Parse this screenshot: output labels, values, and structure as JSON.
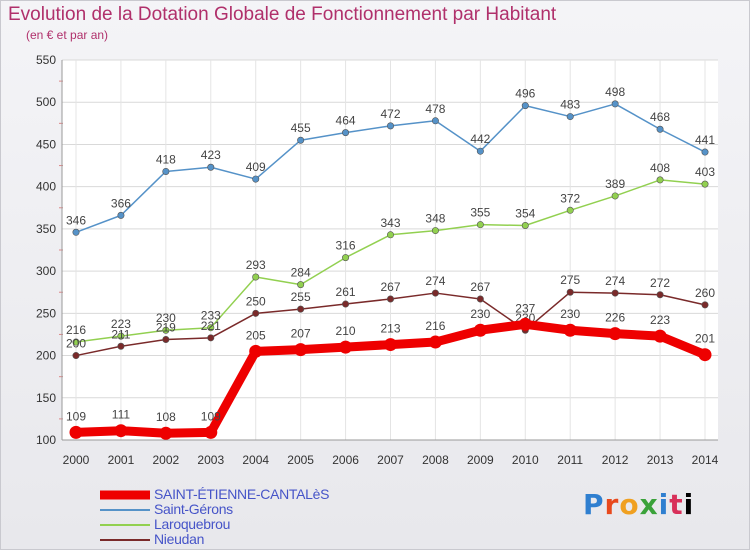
{
  "title": "Evolution de la Dotation Globale de Fonctionnement par Habitant",
  "subtitle": "(en € et par an)",
  "logo_text": "Proxiti",
  "chart_data": {
    "type": "line",
    "title": "Evolution de la Dotation Globale de Fonctionnement par Habitant",
    "subtitle": "(en € et par an)",
    "x": [
      "2000",
      "2001",
      "2002",
      "2003",
      "2004",
      "2005",
      "2006",
      "2007",
      "2008",
      "2009",
      "2010",
      "2011",
      "2012",
      "2013",
      "2014"
    ],
    "ylim": [
      100,
      550
    ],
    "yticks": [
      100,
      150,
      200,
      250,
      300,
      350,
      400,
      450,
      500,
      550
    ],
    "grid": true,
    "legend_position": "bottom-left",
    "series": [
      {
        "name": "SAINT-ÉTIENNE-CANTALèS",
        "color": "#ee0000",
        "values": [
          109,
          111,
          108,
          109,
          205,
          207,
          210,
          213,
          216,
          230,
          237,
          230,
          226,
          223,
          201
        ]
      },
      {
        "name": "Saint-Gérons",
        "color": "#5592c8",
        "values": [
          346,
          366,
          418,
          423,
          409,
          455,
          464,
          472,
          478,
          442,
          496,
          483,
          498,
          468,
          441
        ]
      },
      {
        "name": "Laroquebrou",
        "color": "#92d050",
        "values": [
          216,
          223,
          230,
          233,
          293,
          284,
          316,
          343,
          348,
          355,
          354,
          372,
          389,
          408,
          403
        ]
      },
      {
        "name": "Nieudan",
        "color": "#7a2a2a",
        "values": [
          200,
          211,
          219,
          221,
          250,
          255,
          261,
          267,
          274,
          267,
          230,
          275,
          274,
          272,
          260
        ]
      }
    ]
  }
}
